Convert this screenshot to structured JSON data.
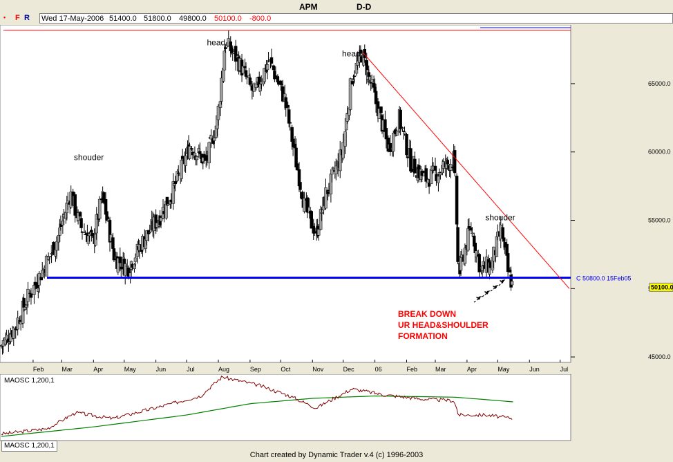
{
  "header": {
    "symbol": "APM",
    "period": "D-D"
  },
  "toolbar": {
    "dot": "•",
    "f_label": "F",
    "r_label": "R"
  },
  "info_bar": {
    "date": "Wed 17-May-2006",
    "open": "51400.0",
    "high": "51800.0",
    "low": "49800.0",
    "close": "50100.0",
    "change": "-800.0"
  },
  "colors": {
    "background": "#ECE9D8",
    "plot_bg": "#FFFFFF",
    "support_line": "#0000FF",
    "trend_line": "#FF0000",
    "annotation": "#FF0000",
    "osc_fast": "#800000",
    "osc_slow": "#008000",
    "candle_up": "#A0A0A0",
    "candle_down": "#000000"
  },
  "chart_data": [
    {
      "type": "candlestick",
      "x_ticks": [
        "Feb",
        "Mar",
        "Apr",
        "May",
        "Jun",
        "Jul",
        "Aug",
        "Sep",
        "Oct",
        "Nov",
        "Dec",
        "06",
        "Feb",
        "Mar",
        "Apr",
        "May",
        "Jun",
        "Jul"
      ],
      "y_ticks": [
        "45000.0",
        "50000.0",
        "55000.0",
        "60000.0",
        "65000.0"
      ],
      "ylim": [
        44600,
        69300
      ],
      "price_label": "50100.0",
      "support_line": {
        "value": 50800,
        "label": "C 50800.0 15Feb05"
      },
      "top_line_value": 68900,
      "trend_line": [
        {
          "date": "2005-12-20",
          "value": 67300
        },
        {
          "date": "2006-07-10",
          "value": 50000
        }
      ],
      "annotations": [
        {
          "text": "shouder",
          "date": "2005-03-25",
          "value": 59400
        },
        {
          "text": "head",
          "date": "2005-08-02",
          "value": 67800
        },
        {
          "text": "head",
          "date": "2005-12-12",
          "value": 67000
        },
        {
          "text": "shouder",
          "date": "2006-05-01",
          "value": 55000
        }
      ],
      "callout": [
        "BREAK DOWN",
        "UR HEAD&SHOULDER",
        "FORMATION"
      ],
      "close_path": [
        [
          "2005-01-01",
          45800
        ],
        [
          "2005-01-15",
          47200
        ],
        [
          "2005-01-25",
          49000
        ],
        [
          "2005-02-10",
          51200
        ],
        [
          "2005-02-25",
          53600
        ],
        [
          "2005-03-10",
          57000
        ],
        [
          "2005-03-20",
          54500
        ],
        [
          "2005-04-01",
          53400
        ],
        [
          "2005-04-10",
          56800
        ],
        [
          "2005-04-22",
          52300
        ],
        [
          "2005-05-05",
          51500
        ],
        [
          "2005-05-20",
          53500
        ],
        [
          "2005-06-05",
          55300
        ],
        [
          "2005-06-20",
          57500
        ],
        [
          "2005-07-05",
          60500
        ],
        [
          "2005-07-20",
          59200
        ],
        [
          "2005-08-01",
          62500
        ],
        [
          "2005-08-08",
          68000
        ],
        [
          "2005-08-20",
          66800
        ],
        [
          "2005-09-05",
          64200
        ],
        [
          "2005-09-20",
          66700
        ],
        [
          "2005-10-05",
          64000
        ],
        [
          "2005-10-15",
          59800
        ],
        [
          "2005-10-25",
          56000
        ],
        [
          "2005-11-05",
          54000
        ],
        [
          "2005-11-15",
          57000
        ],
        [
          "2005-11-30",
          59800
        ],
        [
          "2005-12-10",
          65500
        ],
        [
          "2005-12-20",
          67200
        ],
        [
          "2006-01-05",
          63000
        ],
        [
          "2006-01-15",
          60200
        ],
        [
          "2006-01-25",
          62500
        ],
        [
          "2006-02-05",
          59300
        ],
        [
          "2006-02-20",
          58000
        ],
        [
          "2006-03-05",
          58600
        ],
        [
          "2006-03-20",
          59500
        ],
        [
          "2006-03-24",
          51000
        ],
        [
          "2006-04-05",
          54500
        ],
        [
          "2006-04-15",
          51400
        ],
        [
          "2006-04-25",
          51800
        ],
        [
          "2006-05-05",
          54300
        ],
        [
          "2006-05-12",
          51000
        ],
        [
          "2006-05-17",
          50100
        ]
      ]
    },
    {
      "type": "line",
      "title": "MAOSC 1,200,1",
      "tab_label": "MAOSC 1,200,1",
      "ylim": [
        0,
        100
      ],
      "series": [
        {
          "values_path": [
            [
              "2005-01-01",
              4
            ],
            [
              "2005-02-15",
              13
            ],
            [
              "2005-03-15",
              40
            ],
            [
              "2005-04-20",
              30
            ],
            [
              "2005-06-01",
              48
            ],
            [
              "2005-07-15",
              68
            ],
            [
              "2005-08-05",
              100
            ],
            [
              "2005-09-10",
              86
            ],
            [
              "2005-10-10",
              68
            ],
            [
              "2005-11-05",
              48
            ],
            [
              "2005-12-10",
              80
            ],
            [
              "2006-01-10",
              70
            ],
            [
              "2006-02-15",
              63
            ],
            [
              "2006-03-20",
              60
            ],
            [
              "2006-03-24",
              36
            ],
            [
              "2006-04-20",
              36
            ],
            [
              "2006-05-17",
              30
            ]
          ]
        },
        {
          "values_path": [
            [
              "2005-01-01",
              0
            ],
            [
              "2005-04-01",
              16
            ],
            [
              "2005-07-01",
              36
            ],
            [
              "2005-09-01",
              55
            ],
            [
              "2005-11-01",
              64
            ],
            [
              "2006-01-01",
              68
            ],
            [
              "2006-03-20",
              66
            ],
            [
              "2006-05-17",
              58
            ]
          ]
        }
      ]
    }
  ],
  "footer": {
    "credit": "Chart created by Dynamic Trader v.4  (c) 1996-2003"
  }
}
